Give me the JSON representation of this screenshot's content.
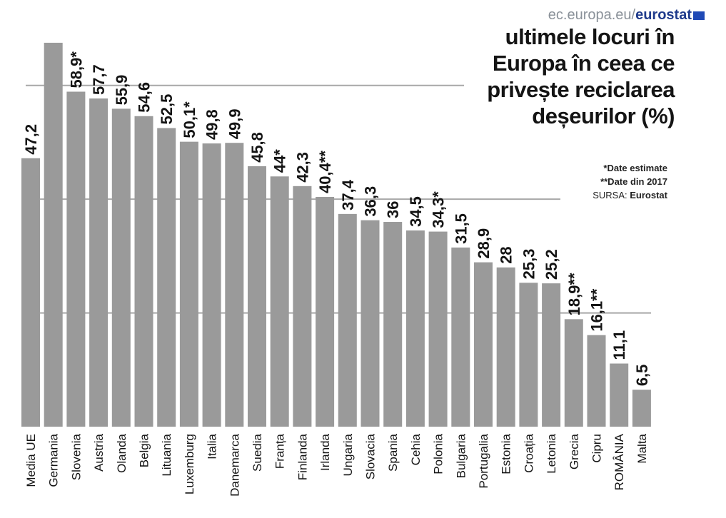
{
  "source_brand": {
    "domain": "ec.europa.eu/",
    "brand": "eurostat"
  },
  "title": "ultimele locuri în Europa în ceea ce privește reciclarea deșeurilor (%)",
  "notes": {
    "estimated": "*Date estimate",
    "from_2017": "**Date din 2017",
    "source_label": "SURSA:",
    "source_value": "Eurostat"
  },
  "colors": {
    "bar": "#9a9a9a",
    "gridline": "#a8a8a8",
    "text": "#141414"
  },
  "chart_data": {
    "type": "bar",
    "orientation": "vertical",
    "grid": true,
    "ylim": [
      0,
      70
    ],
    "categories": [
      "Media UE",
      "Germania",
      "Slovenia",
      "Austria",
      "Olanda",
      "Belgia",
      "Lituania",
      "Luxemburg",
      "Italia",
      "Danemarca",
      "Suedia",
      "Franța",
      "Finlanda",
      "Irlanda",
      "Ungaria",
      "Slovacia",
      "Spania",
      "Cehia",
      "Polonia",
      "Bulgaria",
      "Portugalia",
      "Estonia",
      "Croația",
      "Letonia",
      "Grecia",
      "Cipru",
      "ROMÂNIA",
      "Malta"
    ],
    "values": [
      47.2,
      67.5,
      58.9,
      57.7,
      55.9,
      54.6,
      52.5,
      50.1,
      49.8,
      49.9,
      45.8,
      44,
      42.3,
      40.4,
      37.4,
      36.3,
      36,
      34.5,
      34.3,
      31.5,
      28.9,
      28,
      25.3,
      25.2,
      18.9,
      16.1,
      11.1,
      6.5
    ],
    "data_labels": [
      "47,2",
      "",
      "58,9*",
      "57,7",
      "55,9",
      "54,6",
      "52,5",
      "50,1*",
      "49,8",
      "49,9",
      "45,8",
      "44*",
      "42,3",
      "40,4**",
      "37,4",
      "36,3",
      "36",
      "34,5",
      "34,3*",
      "31,5",
      "28,9",
      "28",
      "25,3",
      "25,2",
      "18,9**",
      "16,1**",
      "11,1",
      "6,5"
    ]
  }
}
